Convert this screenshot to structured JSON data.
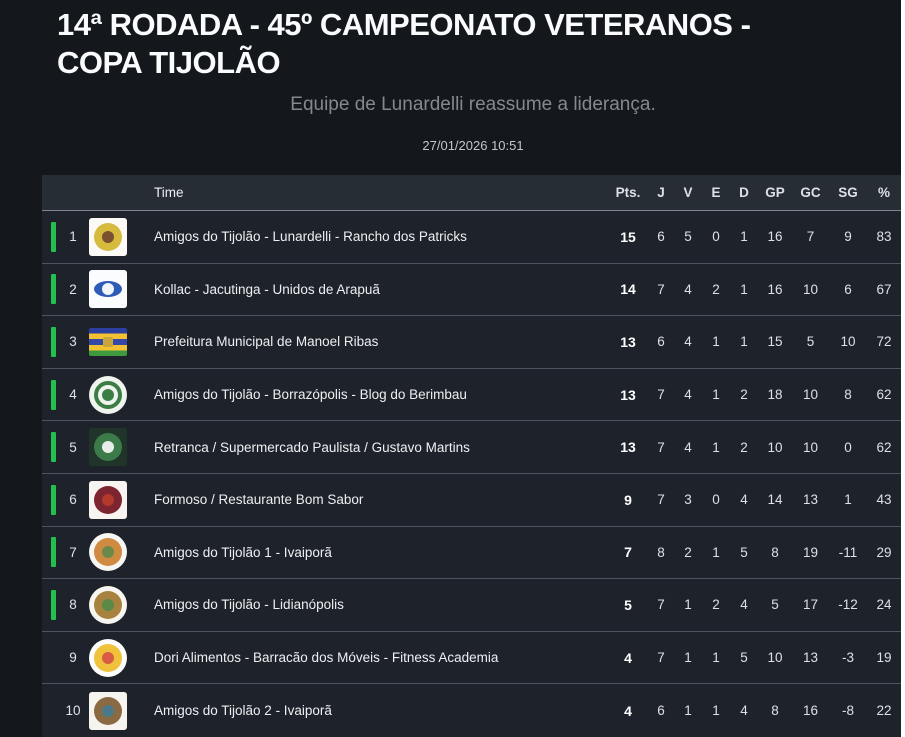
{
  "page": {
    "title_lines": [
      "14ª RODADA - 45º CAMPEONATO VETERANOS -",
      "COPA TIJOLÃO"
    ],
    "subtitle": "Equipe de Lunardelli reassume a liderança.",
    "timestamp": "27/01/2026 10:51"
  },
  "colors": {
    "qualification_green": "#22c14e",
    "background": "#14181d",
    "row_background": "#1e232b",
    "header_background": "#272d35"
  },
  "table": {
    "columns": [
      "Time",
      "Pts.",
      "J",
      "V",
      "E",
      "D",
      "GP",
      "GC",
      "SG",
      "%"
    ],
    "rows": [
      {
        "pos": 1,
        "team": "Amigos do Tijolão - Lunardelli - Rancho dos Patricks",
        "pts": 15,
        "j": 6,
        "v": 5,
        "e": 0,
        "d": 1,
        "gp": 16,
        "gc": 7,
        "sg": 9,
        "pct": 83,
        "qualified": true,
        "logo": {
          "bg": "#fbfaf6",
          "main": "#d6bb3e",
          "accent": "#7a512e"
        }
      },
      {
        "pos": 2,
        "team": "Kollac - Jacutinga - Unidos de Arapuã",
        "pts": 14,
        "j": 7,
        "v": 4,
        "e": 2,
        "d": 1,
        "gp": 16,
        "gc": 10,
        "sg": 6,
        "pct": 67,
        "qualified": true,
        "logo": {
          "bg": "#fbfcfe",
          "main": "#2e5cb8",
          "accent": "#f2f5fa",
          "shape": "ellipse"
        }
      },
      {
        "pos": 3,
        "team": "Prefeitura Municipal de Manoel Ribas",
        "pts": 13,
        "j": 6,
        "v": 4,
        "e": 1,
        "d": 1,
        "gp": 15,
        "gc": 5,
        "sg": 10,
        "pct": 72,
        "qualified": true,
        "logo": {
          "stripes": [
            "#2b3f9e",
            "#f2c233",
            "#3548a8",
            "#f2c233",
            "#3f9a3f"
          ],
          "accent": "#caa53a"
        }
      },
      {
        "pos": 4,
        "team": "Amigos do Tijolão - Borrazópolis - Blog do Berimbau",
        "pts": 13,
        "j": 7,
        "v": 4,
        "e": 1,
        "d": 2,
        "gp": 18,
        "gc": 10,
        "sg": 8,
        "pct": 62,
        "qualified": true,
        "logo": {
          "bg": "#f0f4ef",
          "main": "#3c7d46",
          "accent": "#3c7d46",
          "shape": "ring",
          "round": true
        }
      },
      {
        "pos": 5,
        "team": "Retranca / Supermercado Paulista / Gustavo Martins",
        "pts": 13,
        "j": 7,
        "v": 4,
        "e": 1,
        "d": 2,
        "gp": 10,
        "gc": 10,
        "sg": 0,
        "pct": 62,
        "qualified": true,
        "logo": {
          "bg": "#20342a",
          "main": "#3d7a4a",
          "accent": "#e9ede9"
        }
      },
      {
        "pos": 6,
        "team": "Formoso / Restaurante Bom Sabor",
        "pts": 9,
        "j": 7,
        "v": 3,
        "e": 0,
        "d": 4,
        "gp": 14,
        "gc": 13,
        "sg": 1,
        "pct": 43,
        "qualified": true,
        "logo": {
          "bg": "#f7f4f1",
          "main": "#7c2430",
          "accent": "#b33a2a"
        }
      },
      {
        "pos": 7,
        "team": "Amigos do Tijolão 1 - Ivaiporã",
        "pts": 7,
        "j": 8,
        "v": 2,
        "e": 1,
        "d": 5,
        "gp": 8,
        "gc": 19,
        "sg": -11,
        "pct": 29,
        "qualified": true,
        "logo": {
          "bg": "#f8f6f3",
          "main": "#d08b42",
          "accent": "#6a8a4a",
          "round": true
        }
      },
      {
        "pos": 8,
        "team": "Amigos do Tijolão - Lidianópolis",
        "pts": 5,
        "j": 7,
        "v": 1,
        "e": 2,
        "d": 4,
        "gp": 5,
        "gc": 17,
        "sg": -12,
        "pct": 24,
        "qualified": true,
        "logo": {
          "bg": "#f8f6f0",
          "main": "#a8833f",
          "accent": "#5a8a46",
          "round": true
        }
      },
      {
        "pos": 9,
        "team": "Dori Alimentos - Barracão dos Móveis - Fitness Academia",
        "pts": 4,
        "j": 7,
        "v": 1,
        "e": 1,
        "d": 5,
        "gp": 10,
        "gc": 13,
        "sg": -3,
        "pct": 19,
        "qualified": false,
        "logo": {
          "bg": "#fdfdfb",
          "main": "#f0c23c",
          "accent": "#d95b43",
          "round": true
        }
      },
      {
        "pos": 10,
        "team": "Amigos do Tijolão 2 - Ivaiporã",
        "pts": 4,
        "j": 6,
        "v": 1,
        "e": 1,
        "d": 4,
        "gp": 8,
        "gc": 16,
        "sg": -8,
        "pct": 22,
        "qualified": false,
        "logo": {
          "bg": "#f6f4ef",
          "main": "#8a6a42",
          "accent": "#4a7a8a"
        }
      }
    ]
  }
}
